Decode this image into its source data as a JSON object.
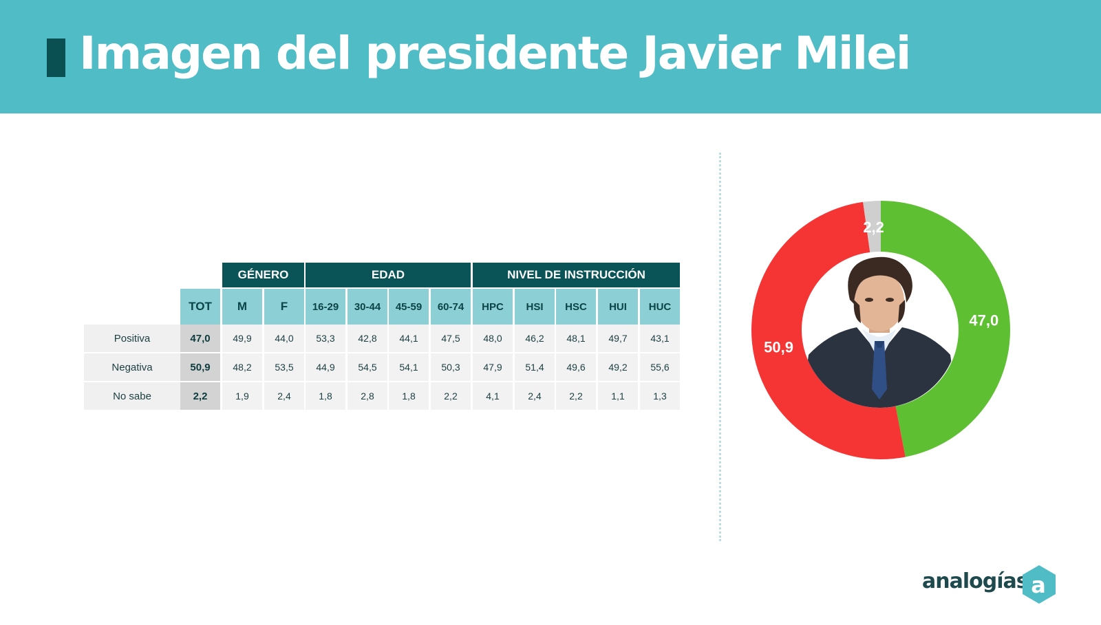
{
  "header": {
    "title": "Imagen del presidente Javier Milei"
  },
  "table": {
    "groups": [
      "GÉNERO",
      "EDAD",
      "NIVEL DE INSTRUCCIÓN"
    ],
    "columns": [
      "TOT",
      "M",
      "F",
      "16-29",
      "30-44",
      "45-59",
      "60-74",
      "HPC",
      "HSI",
      "HSC",
      "HUI",
      "HUC"
    ],
    "rows": [
      {
        "label": "Positiva",
        "values": [
          "47,0",
          "49,9",
          "44,0",
          "53,3",
          "42,8",
          "44,1",
          "47,5",
          "48,0",
          "46,2",
          "48,1",
          "49,7",
          "43,1"
        ]
      },
      {
        "label": "Negativa",
        "values": [
          "50,9",
          "48,2",
          "53,5",
          "44,9",
          "54,5",
          "54,1",
          "50,3",
          "47,9",
          "51,4",
          "49,6",
          "49,2",
          "55,6"
        ]
      },
      {
        "label": "No sabe",
        "values": [
          "2,2",
          "1,9",
          "2,4",
          "1,8",
          "2,8",
          "1,8",
          "2,2",
          "4,1",
          "2,4",
          "2,2",
          "1,1",
          "1,3"
        ]
      }
    ]
  },
  "chart_data": {
    "type": "pie",
    "slices": [
      {
        "label": "47,0",
        "value": 47.0,
        "color": "#5fbf33"
      },
      {
        "label": "50,9",
        "value": 50.9,
        "color": "#f53434"
      },
      {
        "label": "2,2",
        "value": 2.2,
        "color": "#cfcfcf"
      }
    ]
  },
  "logo": {
    "text": "analogías"
  },
  "colors": {
    "header_bg": "#4fbcc6",
    "dark_teal": "#0a5457",
    "light_teal": "#8ccfd4",
    "positive": "#5fbf33",
    "negative": "#f53434",
    "unknown": "#cfcfcf"
  }
}
